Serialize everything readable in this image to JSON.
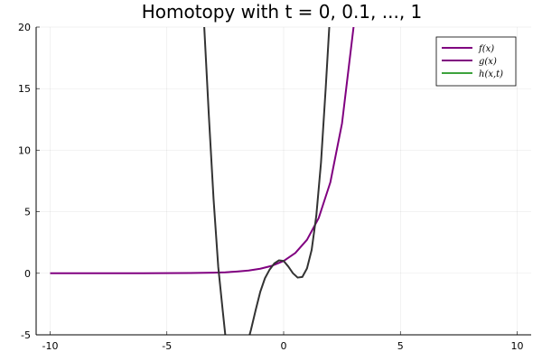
{
  "chart_data": {
    "type": "line",
    "title": "Homotopy with t = 0, 0.1, ..., 1",
    "xlabel": "",
    "ylabel": "",
    "xlim": [
      -10.6,
      10.6
    ],
    "ylim": [
      -5,
      20
    ],
    "x_ticks": [
      -10,
      -5,
      0,
      5,
      10
    ],
    "y_ticks": [
      -5,
      0,
      5,
      10,
      15,
      20
    ],
    "grid": true,
    "legend_position": "top-right",
    "series": [
      {
        "name": "f(x)",
        "color": "#800080",
        "style": "line",
        "x": [
          -10,
          -8,
          -6,
          -4,
          -3,
          -2.5,
          -2,
          -1.5,
          -1,
          -0.5,
          0,
          0.5,
          1,
          1.5,
          2,
          2.5,
          3,
          3.1
        ],
        "y": [
          0.0,
          0.0,
          0.002,
          0.02,
          0.05,
          0.08,
          0.14,
          0.22,
          0.37,
          0.61,
          1.0,
          1.65,
          2.72,
          4.48,
          7.39,
          12.18,
          20.09,
          22.2
        ]
      },
      {
        "name": "g(x)",
        "color": "#800080",
        "style": "line",
        "x": [],
        "y": []
      },
      {
        "name": "h(x,t)",
        "color": "#3da33d",
        "style": "line",
        "x": [],
        "y": []
      },
      {
        "name": "",
        "color": "#333333",
        "style": "line",
        "x": [
          -3.4,
          -3.2,
          -3.0,
          -2.8,
          -2.6,
          -2.5,
          -2.4
        ],
        "y": [
          20.0,
          12.7,
          6.0,
          0.5,
          -3.2,
          -5.0,
          -6.5
        ]
      },
      {
        "name": "",
        "color": "#333333",
        "style": "line",
        "x": [
          -1.6,
          -1.4,
          -1.2,
          -1.0,
          -0.8,
          -0.6,
          -0.4,
          -0.2,
          0.0,
          0.2,
          0.4,
          0.6,
          0.8,
          1.0,
          1.2,
          1.4,
          1.6,
          1.8,
          2.0
        ],
        "y": [
          -6.0,
          -4.6,
          -3.0,
          -1.5,
          -0.4,
          0.3,
          0.8,
          1.05,
          1.0,
          0.55,
          0.0,
          -0.35,
          -0.3,
          0.4,
          1.9,
          4.7,
          9.0,
          15.0,
          21.5
        ]
      }
    ]
  }
}
